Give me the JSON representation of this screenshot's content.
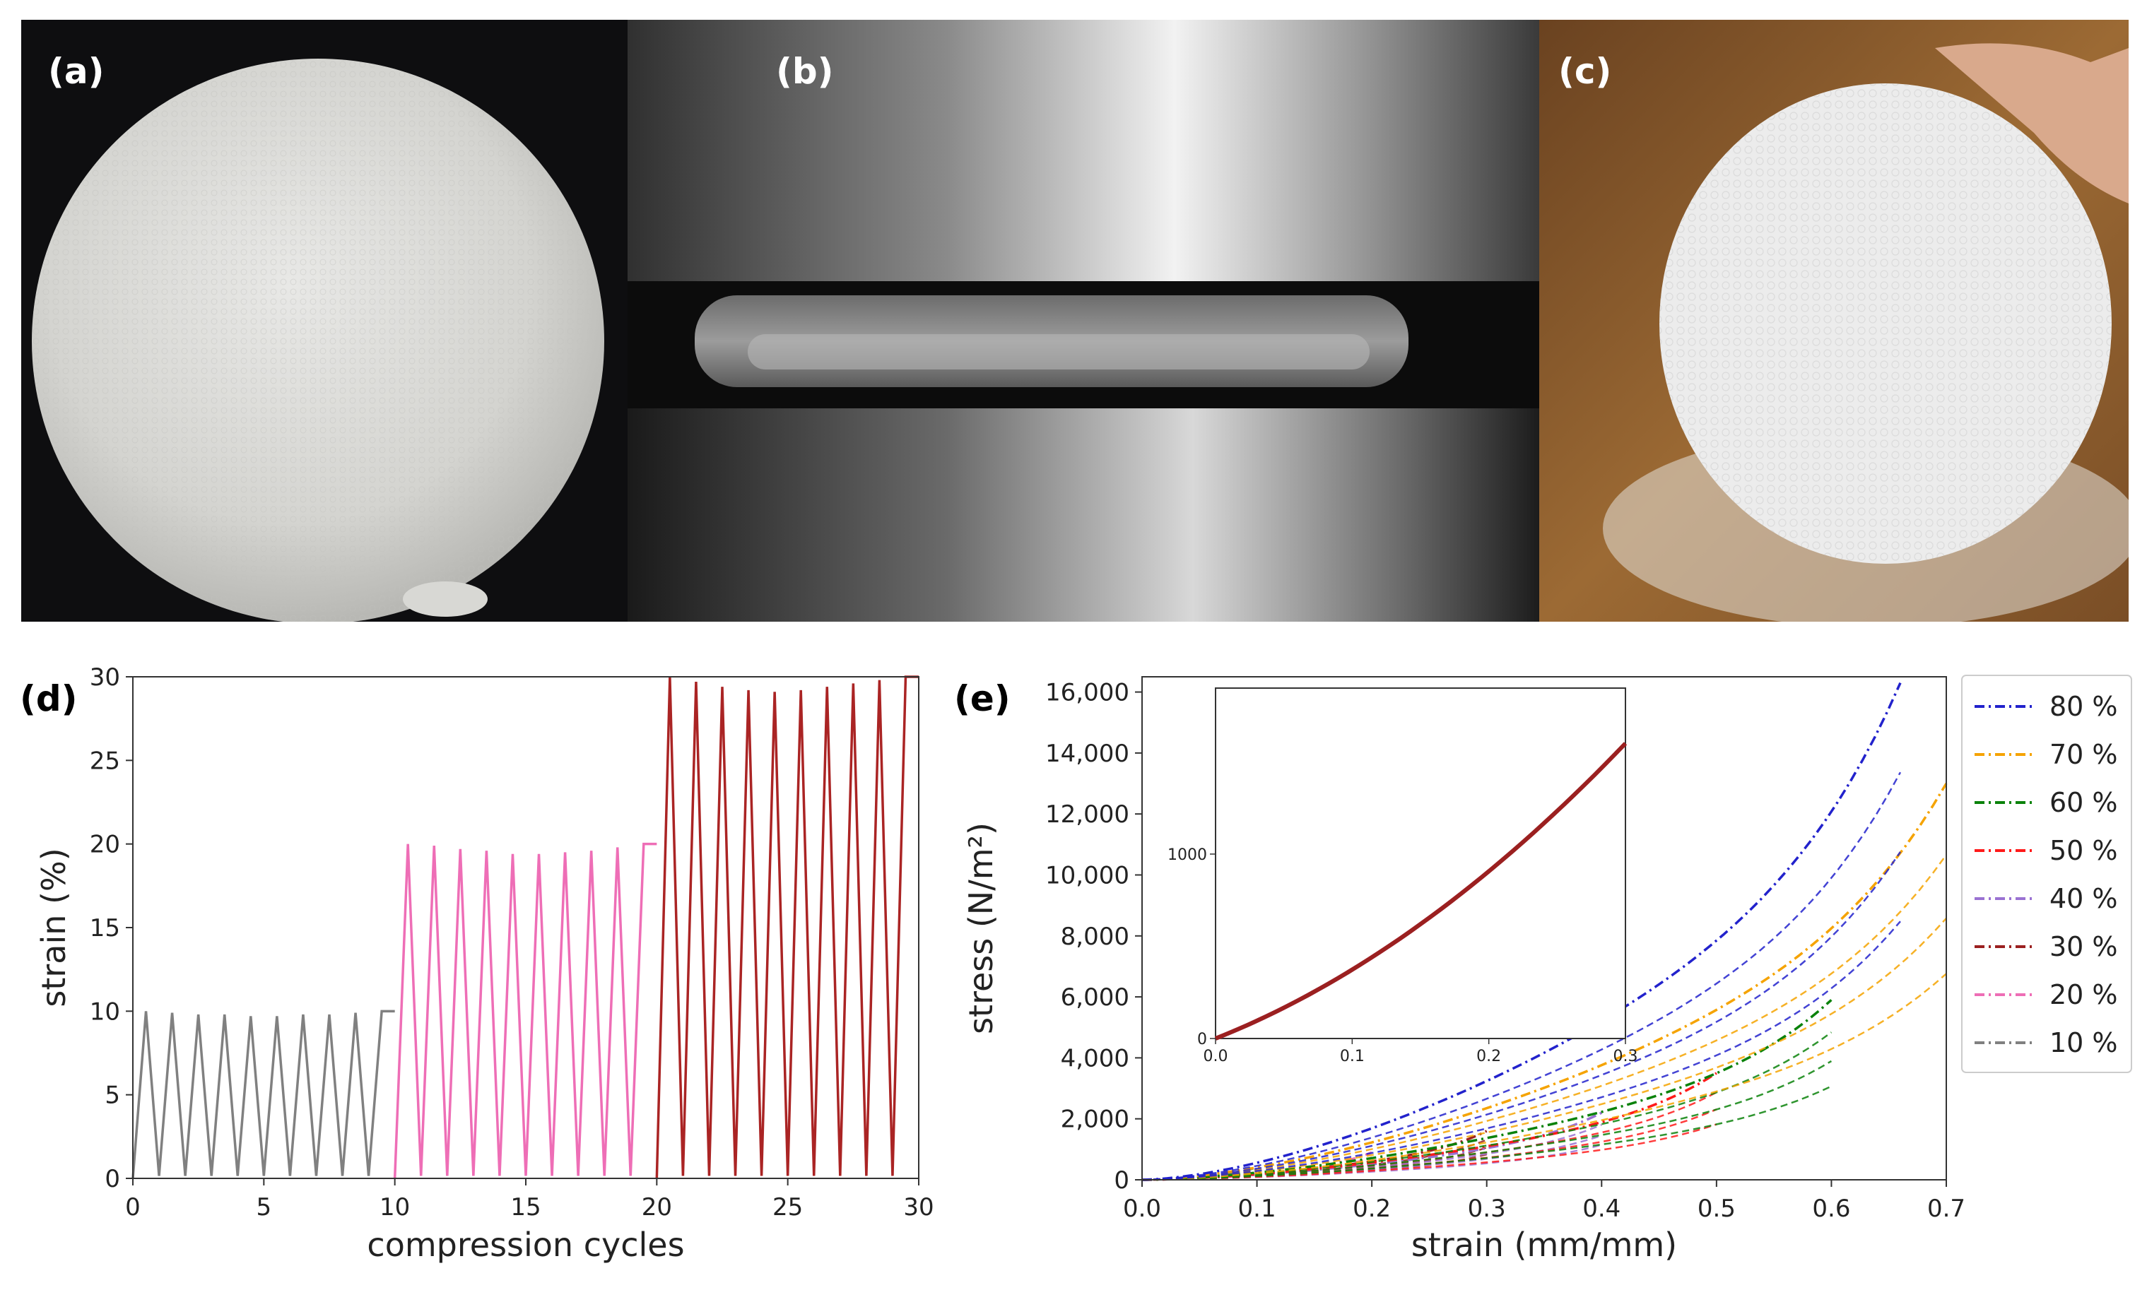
{
  "panels": {
    "a": "(a)",
    "b": "(b)",
    "c": "(c)",
    "d": "(d)",
    "e": "(e)"
  },
  "chart_data": [
    {
      "id": "d",
      "type": "line",
      "xlabel": "compression cycles",
      "ylabel": "strain (%)",
      "xlim": [
        0,
        30
      ],
      "ylim": [
        0,
        30
      ],
      "xticks": [
        0,
        5,
        10,
        15,
        20,
        25,
        30
      ],
      "yticks": [
        0,
        5,
        10,
        15,
        20,
        25,
        30
      ],
      "grid": false,
      "series": [
        {
          "color": "#808080",
          "cycles": [
            0,
            10
          ],
          "peaks": [
            10,
            9.9,
            9.8,
            9.8,
            9.7,
            9.7,
            9.8,
            9.8,
            9.9,
            10
          ]
        },
        {
          "color": "#ee6eb6",
          "cycles": [
            10,
            20
          ],
          "peaks": [
            20,
            19.9,
            19.7,
            19.6,
            19.4,
            19.4,
            19.5,
            19.6,
            19.8,
            20
          ]
        },
        {
          "color": "#aa2424",
          "cycles": [
            20,
            30
          ],
          "peaks": [
            30,
            29.7,
            29.4,
            29.2,
            29.1,
            29.2,
            29.4,
            29.6,
            29.8,
            30
          ]
        }
      ]
    },
    {
      "id": "e",
      "type": "line",
      "xlabel": "strain (mm/mm)",
      "ylabel": "stress (N/m²)",
      "xlim": [
        0,
        0.7
      ],
      "ylim": [
        0,
        16500
      ],
      "xticks": [
        0.0,
        0.1,
        0.2,
        0.3,
        0.4,
        0.5,
        0.6,
        0.7
      ],
      "yticks": [
        0,
        2000,
        4000,
        6000,
        8000,
        10000,
        12000,
        14000,
        16000
      ],
      "ytick_labels": [
        "0",
        "2,000",
        "4,000",
        "6,000",
        "8,000",
        "10,000",
        "12,000",
        "14,000",
        "16,000"
      ],
      "legend": "outside-right",
      "grid": false,
      "series": [
        {
          "name": "80 %",
          "color": "#2222cc",
          "max_strain": 0.66,
          "max_stress": 16300
        },
        {
          "name": "70 %",
          "color": "#f5a300",
          "max_strain": 0.7,
          "max_stress": 13000
        },
        {
          "name": "60 %",
          "color": "#0a820a",
          "max_strain": 0.6,
          "max_stress": 5900
        },
        {
          "name": "50 %",
          "color": "#ff1a1a",
          "max_strain": 0.5,
          "max_stress": 3500
        },
        {
          "name": "40 %",
          "color": "#9a72d2",
          "max_strain": 0.4,
          "max_stress": 2200
        },
        {
          "name": "30 %",
          "color": "#9b2020",
          "max_strain": 0.3,
          "max_stress": 1600
        },
        {
          "name": "20 %",
          "color": "#ee6eb6",
          "max_strain": 0.2,
          "max_stress": 900
        },
        {
          "name": "10 %",
          "color": "#808080",
          "max_strain": 0.1,
          "max_stress": 420
        }
      ],
      "inset": {
        "xlim": [
          0,
          0.3
        ],
        "ylim": [
          0,
          1900
        ],
        "xticks": [
          0.0,
          0.1,
          0.2,
          0.3
        ],
        "yticks": [
          0,
          1000
        ],
        "ytick_labels": [
          "0",
          "1000"
        ]
      }
    }
  ]
}
